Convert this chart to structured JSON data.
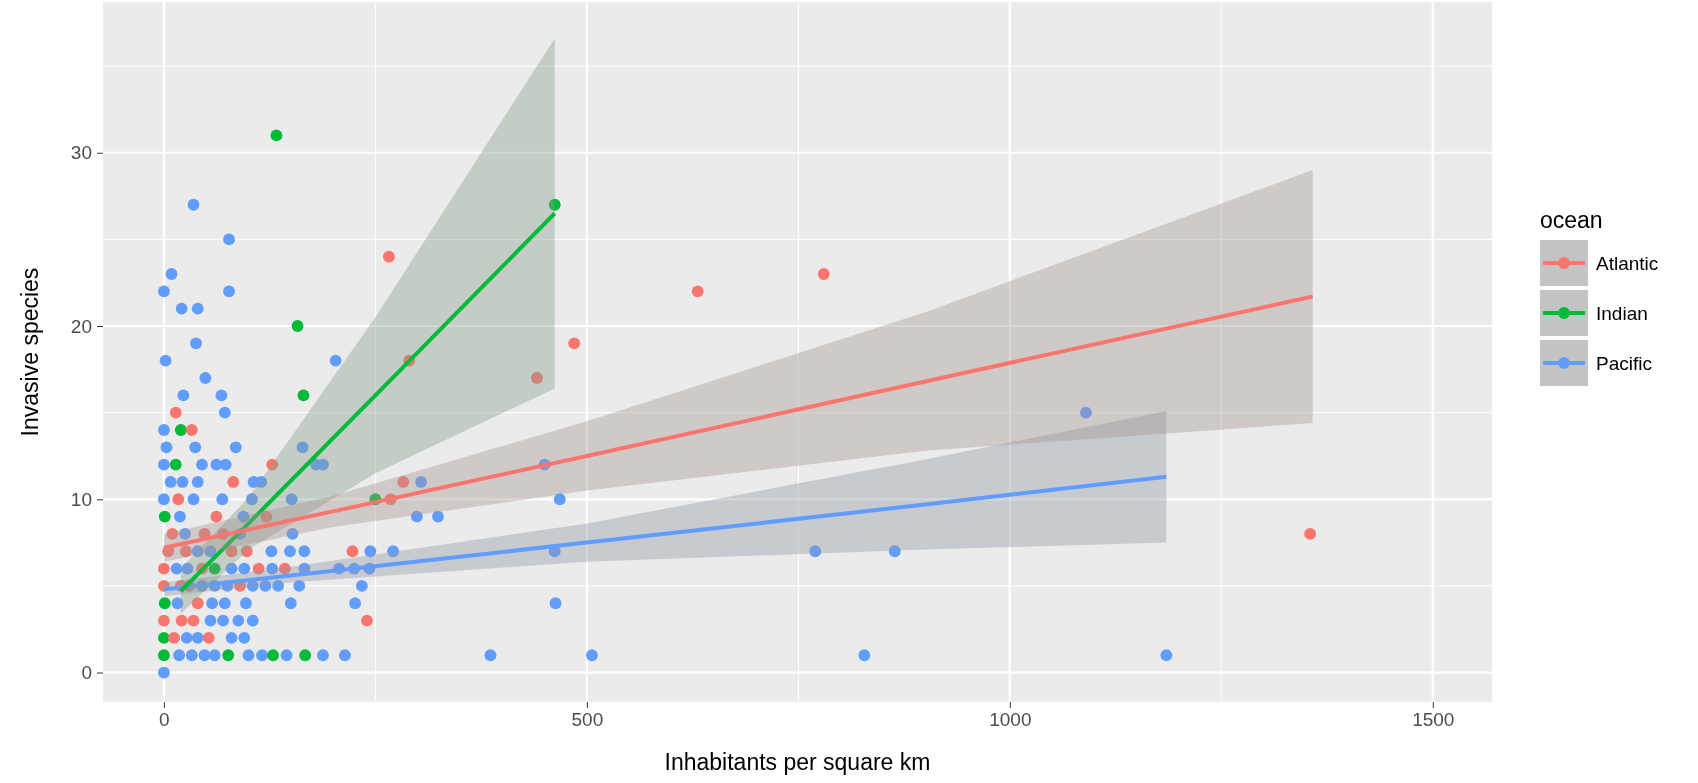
{
  "chart_data": {
    "type": "scatter",
    "xlabel": "Inhabitants per square km",
    "ylabel": "Invasive species",
    "legend_title": "ocean",
    "legend": "right",
    "grid": true,
    "xlim": [
      -72,
      1570
    ],
    "ylim": [
      -1.7,
      38.7
    ],
    "xticks": [
      0,
      {
        "value": 250,
        "label": null
      },
      500,
      {
        "value": 750,
        "label": null
      },
      1000,
      {
        "value": 1250,
        "label": null
      },
      1500
    ],
    "yticks": [
      0,
      {
        "value": 5,
        "label": null
      },
      10,
      {
        "value": 15,
        "label": null
      },
      20,
      {
        "value": 25,
        "label": null
      },
      30,
      {
        "value": 35,
        "label": null
      }
    ],
    "series": [
      {
        "name": "Atlantic",
        "marker": "circle",
        "color": "#f8766d",
        "x": [
          266,
          14,
          33,
          128,
          82,
          283,
          17,
          268,
          62,
          121,
          290,
          441,
          485,
          631,
          780,
          1355,
          223,
          143,
          112,
          240,
          12,
          53,
          0,
          21,
          35,
          10,
          48,
          70,
          5,
          26,
          80,
          98,
          0,
          20,
          30,
          90,
          0,
          45,
          40
        ],
        "values": [
          24,
          15,
          14,
          12,
          11,
          11,
          10,
          10,
          9,
          9,
          18,
          17,
          19,
          22,
          23,
          8,
          7,
          6,
          6,
          3,
          2,
          2,
          3,
          3,
          3,
          8,
          8,
          8,
          7,
          7,
          7,
          7,
          5,
          5,
          5,
          5,
          6,
          6,
          4
        ]
      },
      {
        "name": "Indian",
        "marker": "circle",
        "color": "#00ba38",
        "x": [
          133,
          158,
          165,
          20,
          14,
          1,
          250,
          1,
          0,
          0,
          76,
          129,
          167,
          462,
          60
        ],
        "values": [
          31,
          20,
          16,
          14,
          12,
          9,
          10,
          4,
          2,
          1,
          1,
          1,
          1,
          27,
          6
        ]
      },
      {
        "name": "Pacific",
        "marker": "circle",
        "color": "#619cff",
        "x": [
          35,
          77,
          9,
          0,
          77,
          21,
          40,
          38,
          2,
          203,
          49,
          23,
          68,
          72,
          1090,
          0,
          3,
          37,
          85,
          164,
          0,
          45,
          62,
          73,
          180,
          188,
          450,
          8,
          22,
          40,
          106,
          115,
          304,
          0,
          35,
          69,
          104,
          151,
          468,
          19,
          94,
          299,
          324,
          25,
          90,
          152,
          40,
          55,
          127,
          149,
          166,
          244,
          271,
          462,
          770,
          864,
          15,
          28,
          80,
          95,
          128,
          166,
          207,
          225,
          243,
          45,
          60,
          75,
          105,
          120,
          135,
          160,
          234,
          16,
          57,
          72,
          97,
          150,
          226,
          463,
          55,
          70,
          88,
          105,
          27,
          40,
          80,
          95,
          18,
          33,
          48,
          60,
          100,
          116,
          145,
          188,
          214,
          386,
          506,
          828,
          1185,
          0
        ],
        "values": [
          27,
          25,
          23,
          22,
          22,
          21,
          21,
          19,
          18,
          18,
          17,
          16,
          16,
          15,
          15,
          14,
          13,
          13,
          13,
          13,
          12,
          12,
          12,
          12,
          12,
          12,
          12,
          11,
          11,
          11,
          11,
          11,
          11,
          10,
          10,
          10,
          10,
          10,
          10,
          9,
          9,
          9,
          9,
          8,
          8,
          8,
          7,
          7,
          7,
          7,
          7,
          7,
          7,
          7,
          7,
          7,
          6,
          6,
          6,
          6,
          6,
          6,
          6,
          6,
          6,
          5,
          5,
          5,
          5,
          5,
          5,
          5,
          5,
          4,
          4,
          4,
          4,
          4,
          4,
          4,
          3,
          3,
          3,
          3,
          2,
          2,
          2,
          2,
          1,
          1,
          1,
          1,
          1,
          1,
          1,
          1,
          1,
          1,
          1,
          1,
          1,
          0
        ]
      },
      {
        "type": "line",
        "color": "#f8766d",
        "x": [
          0,
          200,
          500,
          900,
          1358
        ],
        "values": [
          7.2,
          9.3,
          12.5,
          16.8,
          21.7
        ],
        "lower": [
          6.4,
          8.4,
          10.5,
          12.8,
          14.4
        ],
        "upper": [
          8.0,
          10.2,
          14.5,
          20.8,
          29.0
        ]
      },
      {
        "type": "line",
        "color": "#00ba38",
        "x": [
          20,
          100,
          250,
          462
        ],
        "values": [
          4.7,
          8.6,
          16.0,
          26.5
        ],
        "lower": [
          3.4,
          7.1,
          11.5,
          16.4
        ],
        "upper": [
          6.0,
          10.1,
          20.5,
          36.6
        ]
      },
      {
        "type": "line",
        "color": "#619cff",
        "x": [
          0,
          150,
          500,
          900,
          1185
        ],
        "values": [
          4.8,
          5.6,
          7.5,
          9.7,
          11.3
        ],
        "lower": [
          4.4,
          5.2,
          6.4,
          7.1,
          7.5
        ],
        "upper": [
          5.2,
          6.1,
          8.6,
          12.3,
          15.1
        ]
      }
    ]
  }
}
